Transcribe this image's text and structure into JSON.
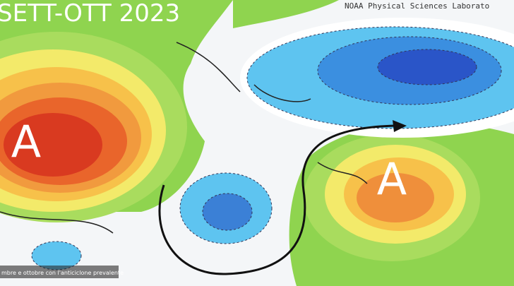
{
  "title": "SETT-OTT 2023",
  "credit": "NOAA Physical Sciences Laborato",
  "labels": [
    "A",
    "A"
  ],
  "caption": "mbre e ottobre con l'anticiclone prevalente"
}
